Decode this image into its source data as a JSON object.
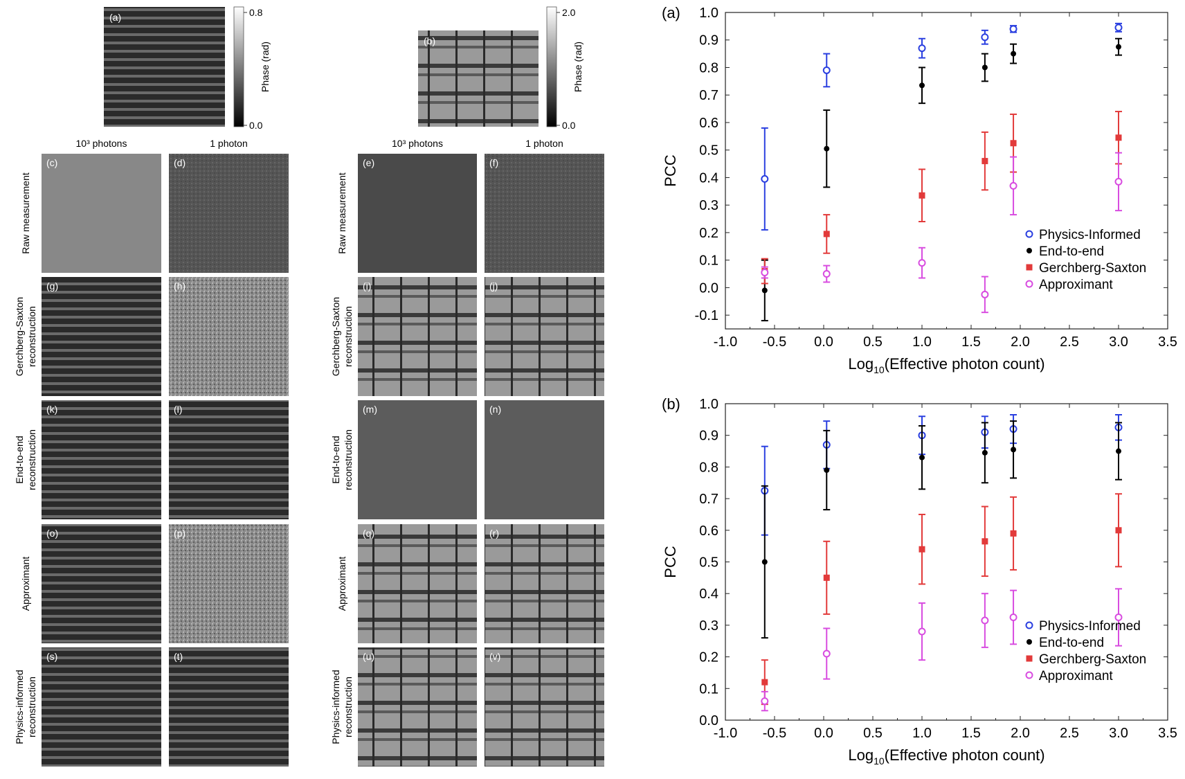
{
  "image_panels": {
    "group_a": {
      "ref_label": "(a)",
      "colorbar": {
        "label": "Phase (rad)",
        "max": "0.8",
        "min": "0.0"
      },
      "col_headers": [
        "10³ photons",
        "1 photon"
      ],
      "cells": [
        [
          "(c)",
          "(d)"
        ],
        [
          "(g)",
          "(h)"
        ],
        [
          "(k)",
          "(l)"
        ],
        [
          "(o)",
          "(p)"
        ],
        [
          "(s)",
          "(t)"
        ]
      ]
    },
    "group_b": {
      "ref_label": "(b)",
      "colorbar": {
        "label": "Phase (rad)",
        "max": "2.0",
        "min": "0.0"
      },
      "col_headers": [
        "10³ photons",
        "1 photon"
      ],
      "cells": [
        [
          "(e)",
          "(f)"
        ],
        [
          "(i)",
          "(j)"
        ],
        [
          "(m)",
          "(n)"
        ],
        [
          "(q)",
          "(r)"
        ],
        [
          "(u)",
          "(v)"
        ]
      ]
    },
    "row_labels": [
      [
        "Raw measurement"
      ],
      [
        "Gerchberg-Saxton",
        "reconstruction"
      ],
      [
        "End-to-end",
        "reconstruction"
      ],
      [
        "Approximant"
      ],
      [
        "Physics-informed",
        "reconstruction"
      ]
    ]
  },
  "chart_data": [
    {
      "type": "scatter",
      "panel_label": "(a)",
      "xlabel_prefix": "Log",
      "xlabel_sub": "10",
      "xlabel_suffix": "(Effective photon count)",
      "ylabel": "PCC",
      "xlim": [
        -1.0,
        3.5
      ],
      "ylim": [
        -0.15,
        1.0
      ],
      "x_ticks": [
        "-1.0",
        "-0.5",
        "0.0",
        "0.5",
        "1.0",
        "1.5",
        "2.0",
        "2.5",
        "3.0",
        "3.5"
      ],
      "y_ticks": [
        "-0.1",
        "0.0",
        "0.1",
        "0.2",
        "0.3",
        "0.4",
        "0.5",
        "0.6",
        "0.7",
        "0.8",
        "0.9",
        "1.0"
      ],
      "legend_position": "bottom-right",
      "series": [
        {
          "name": "Physics-Informed",
          "color": "#2a3fe0",
          "marker": "circle-open",
          "x": [
            -0.6,
            0.03,
            1.0,
            1.64,
            1.93,
            3.0
          ],
          "y": [
            0.395,
            0.79,
            0.87,
            0.91,
            0.94,
            0.945
          ],
          "err": [
            0.185,
            0.06,
            0.035,
            0.025,
            0.012,
            0.015
          ]
        },
        {
          "name": "End-to-end",
          "color": "#000000",
          "marker": "circle-filled",
          "x": [
            -0.6,
            0.03,
            1.0,
            1.64,
            1.93,
            3.0
          ],
          "y": [
            -0.01,
            0.505,
            0.735,
            0.8,
            0.85,
            0.875
          ],
          "err": [
            0.11,
            0.14,
            0.065,
            0.05,
            0.035,
            0.03
          ]
        },
        {
          "name": "Gerchberg-Saxton",
          "color": "#e23a3a",
          "marker": "square-filled",
          "x": [
            -0.6,
            0.03,
            1.0,
            1.64,
            1.93,
            3.0
          ],
          "y": [
            0.06,
            0.195,
            0.335,
            0.46,
            0.525,
            0.545
          ],
          "err": [
            0.045,
            0.07,
            0.095,
            0.105,
            0.105,
            0.095
          ]
        },
        {
          "name": "Approximant",
          "color": "#d84ce0",
          "marker": "circle-open",
          "x": [
            -0.6,
            0.03,
            1.0,
            1.64,
            1.93,
            3.0
          ],
          "y": [
            0.055,
            0.05,
            0.09,
            -0.025,
            0.37,
            0.385
          ],
          "err": [
            0.02,
            0.03,
            0.055,
            0.065,
            0.105,
            0.105
          ]
        }
      ]
    },
    {
      "type": "scatter",
      "panel_label": "(b)",
      "xlabel_prefix": "Log",
      "xlabel_sub": "10",
      "xlabel_suffix": "(Effective photon count)",
      "ylabel": "PCC",
      "xlim": [
        -1.0,
        3.5
      ],
      "ylim": [
        0.0,
        1.0
      ],
      "x_ticks": [
        "-1.0",
        "-0.5",
        "0.0",
        "0.5",
        "1.0",
        "1.5",
        "2.0",
        "2.5",
        "3.0",
        "3.5"
      ],
      "y_ticks": [
        "0.0",
        "0.1",
        "0.2",
        "0.3",
        "0.4",
        "0.5",
        "0.6",
        "0.7",
        "0.8",
        "0.9",
        "1.0"
      ],
      "legend_position": "bottom-right",
      "series": [
        {
          "name": "Physics-Informed",
          "color": "#2a3fe0",
          "marker": "circle-open",
          "x": [
            -0.6,
            0.03,
            1.0,
            1.64,
            1.93,
            3.0
          ],
          "y": [
            0.725,
            0.87,
            0.9,
            0.91,
            0.92,
            0.925
          ],
          "err": [
            0.14,
            0.075,
            0.06,
            0.05,
            0.045,
            0.04
          ]
        },
        {
          "name": "End-to-end",
          "color": "#000000",
          "marker": "circle-filled",
          "x": [
            -0.6,
            0.03,
            1.0,
            1.64,
            1.93,
            3.0
          ],
          "y": [
            0.5,
            0.79,
            0.83,
            0.845,
            0.855,
            0.85
          ],
          "err": [
            0.24,
            0.125,
            0.1,
            0.095,
            0.09,
            0.09
          ]
        },
        {
          "name": "Gerchberg-Saxton",
          "color": "#e23a3a",
          "marker": "square-filled",
          "x": [
            -0.6,
            0.03,
            1.0,
            1.64,
            1.93,
            3.0
          ],
          "y": [
            0.12,
            0.45,
            0.54,
            0.565,
            0.59,
            0.6
          ],
          "err": [
            0.07,
            0.115,
            0.11,
            0.11,
            0.115,
            0.115
          ]
        },
        {
          "name": "Approximant",
          "color": "#d84ce0",
          "marker": "circle-open",
          "x": [
            -0.6,
            0.03,
            1.0,
            1.64,
            1.93,
            3.0
          ],
          "y": [
            0.06,
            0.21,
            0.28,
            0.315,
            0.325,
            0.325
          ],
          "err": [
            0.03,
            0.08,
            0.09,
            0.085,
            0.085,
            0.09
          ]
        }
      ]
    }
  ]
}
